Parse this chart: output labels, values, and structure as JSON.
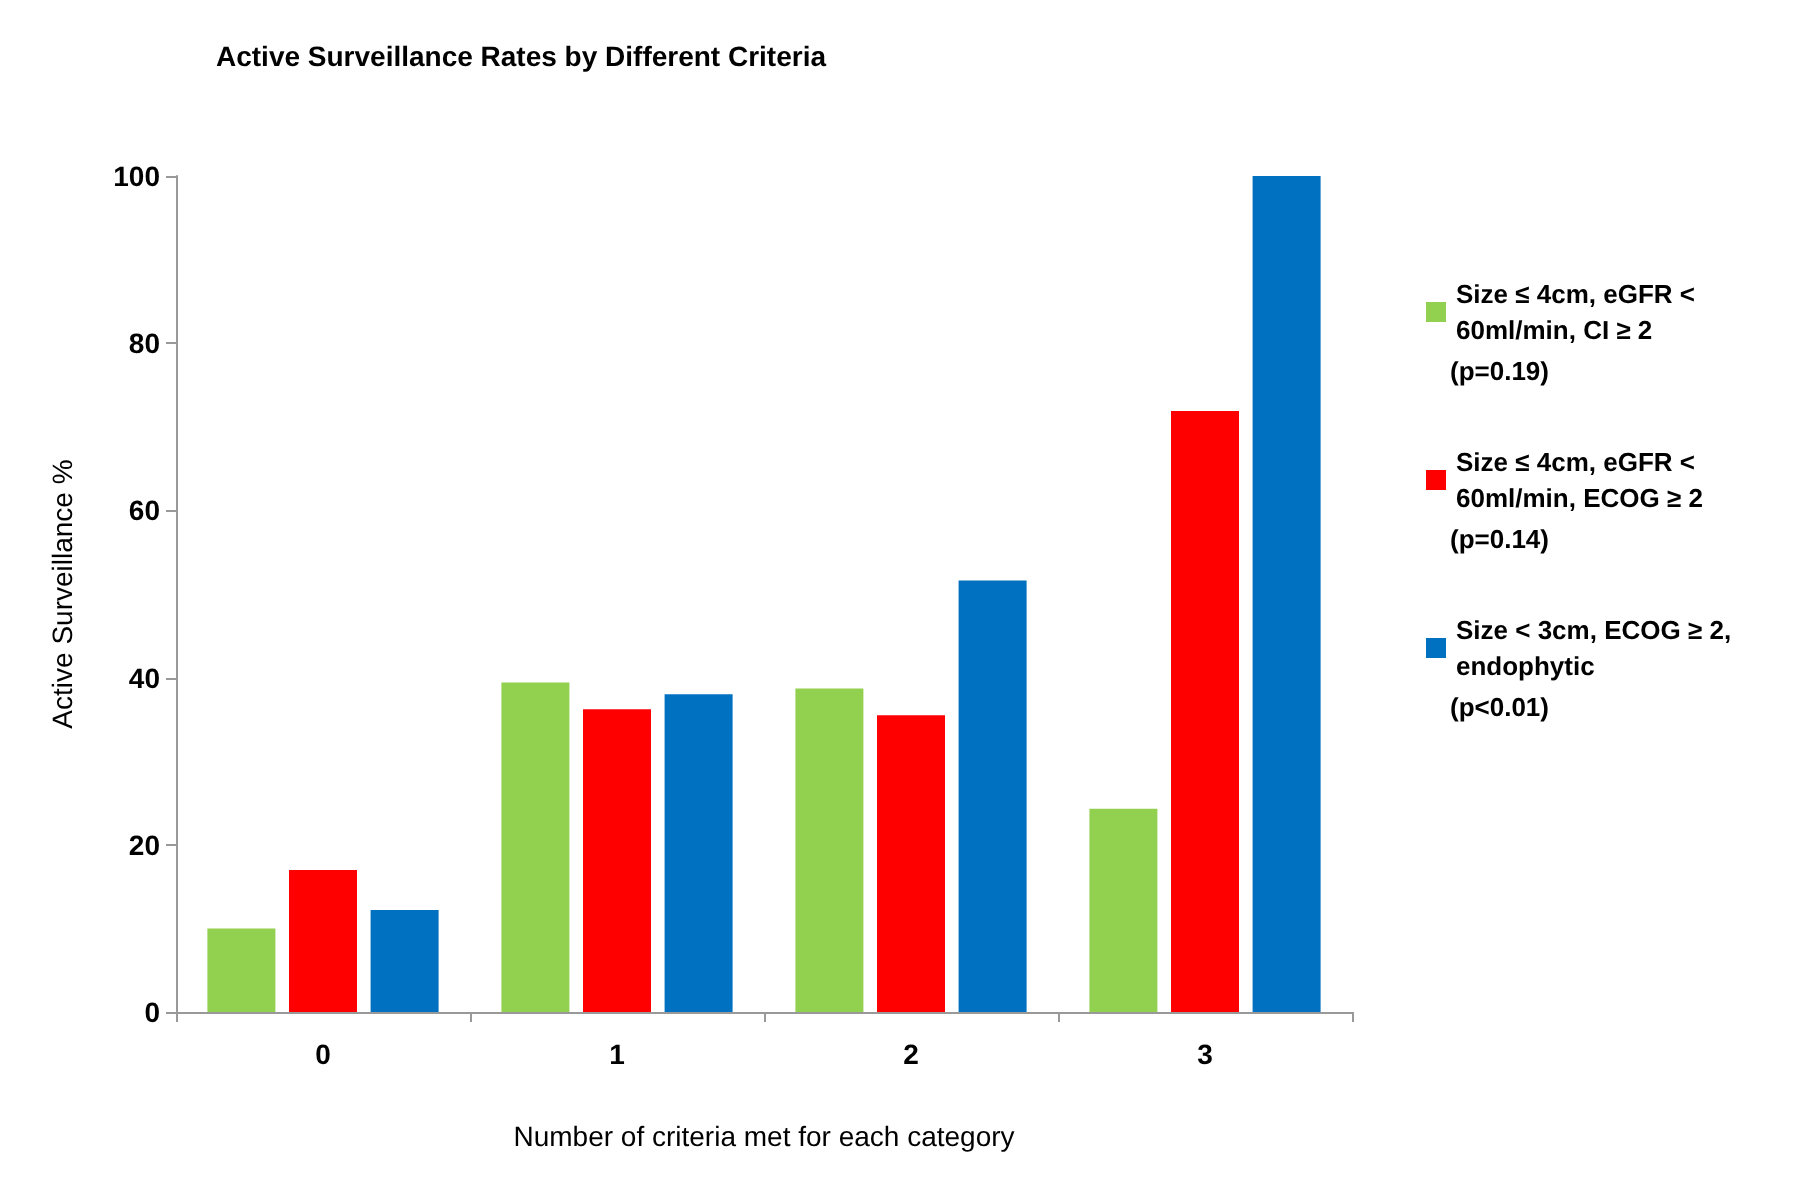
{
  "chart_data": {
    "type": "bar",
    "title": "Active Surveillance Rates by Different Criteria",
    "xlabel": "Number of criteria met for each category",
    "ylabel": "Active Surveillance %",
    "categories": [
      "0",
      "1",
      "2",
      "3"
    ],
    "series": [
      {
        "name": "Size ≤ 4cm, eGFR < 60ml/min, CI ≥ 2",
        "color": "#92d050",
        "values": [
          10,
          39.4,
          38.7,
          24.3
        ]
      },
      {
        "name": "Size ≤ 4cm, eGFR < 60ml/min, ECOG ≥ 2",
        "color": "#ff0000",
        "values": [
          17,
          36.2,
          35.5,
          71.9
        ]
      },
      {
        "name": "Size < 3cm, ECOG ≥ 2, endophytic",
        "color": "#0070c0",
        "values": [
          12.2,
          38,
          51.6,
          100
        ]
      }
    ],
    "annotations": [
      "(p=0.19)",
      "(p=0.14)",
      "(p<0.01)"
    ],
    "ylim": [
      0,
      100
    ],
    "yticks": [
      0,
      20,
      40,
      60,
      80,
      100
    ],
    "grid": false,
    "legend": "right"
  }
}
